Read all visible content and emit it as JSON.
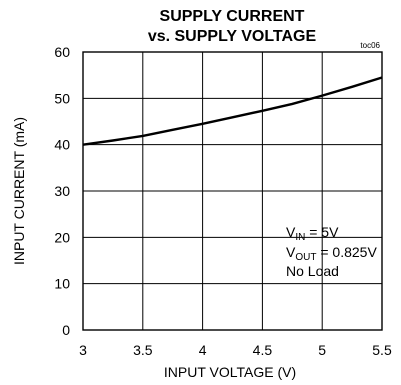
{
  "chart_data": {
    "type": "line",
    "title": "SUPPLY CURRENT",
    "subtitle": "vs. SUPPLY VOLTAGE",
    "figure_tag": "toc06",
    "xlabel": "INPUT VOLTAGE (V)",
    "ylabel": "INPUT CURRENT (mA)",
    "xlim": [
      3,
      5.5
    ],
    "ylim": [
      0,
      60
    ],
    "x_ticks": [
      "3",
      "3.5",
      "4",
      "4.5",
      "5",
      "5.5"
    ],
    "y_ticks": [
      "0",
      "10",
      "20",
      "30",
      "40",
      "50",
      "60"
    ],
    "grid": true,
    "series": [
      {
        "x": [
          3.0,
          3.25,
          3.5,
          3.75,
          4.0,
          4.25,
          4.5,
          4.75,
          5.0,
          5.25,
          5.5
        ],
        "values": [
          40.0,
          40.9,
          41.9,
          43.2,
          44.5,
          45.9,
          47.3,
          48.8,
          50.6,
          52.5,
          54.5
        ]
      }
    ],
    "annotations": {
      "vin_main": "V",
      "vin_sub": "IN",
      "vin_rest": " = 5V",
      "vout_main": "V",
      "vout_sub": "OUT",
      "vout_rest": " = 0.825V",
      "load": "No Load"
    }
  }
}
